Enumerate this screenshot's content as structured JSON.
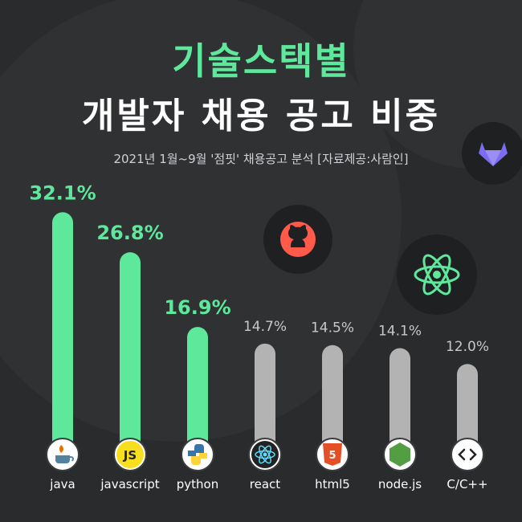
{
  "title_line1": "기술스택별",
  "title_line2": "개발자 채용 공고 비중",
  "subtitle": "2021년 1월~9월 '점핏' 채용공고 분석 [자료제공:사람인]",
  "colors": {
    "background": "#2a2b2d",
    "accent_green": "#5ee89c",
    "bar_gray": "#b3b3b3",
    "label_gray": "#c8c8c8"
  },
  "decorative_icons": [
    "gitlab-icon",
    "github-icon",
    "react-icon"
  ],
  "chart_data": {
    "type": "bar",
    "categories": [
      "java",
      "javascript",
      "python",
      "react",
      "html5",
      "node.js",
      "C/C++"
    ],
    "values": [
      32.1,
      26.8,
      16.9,
      14.7,
      14.5,
      14.1,
      12.0
    ],
    "value_labels": [
      "32.1%",
      "26.8%",
      "16.9%",
      "14.7%",
      "14.5%",
      "14.1%",
      "12.0%"
    ],
    "highlighted": [
      true,
      true,
      true,
      false,
      false,
      false,
      false
    ],
    "category_icons": [
      "java-icon",
      "javascript-icon",
      "python-icon",
      "react-icon",
      "html5-icon",
      "nodejs-icon",
      "code-brackets-icon"
    ],
    "title": "기술스택별 개발자 채용 공고 비중",
    "xlabel": "",
    "ylabel": "",
    "grid": false,
    "legend": "none"
  }
}
